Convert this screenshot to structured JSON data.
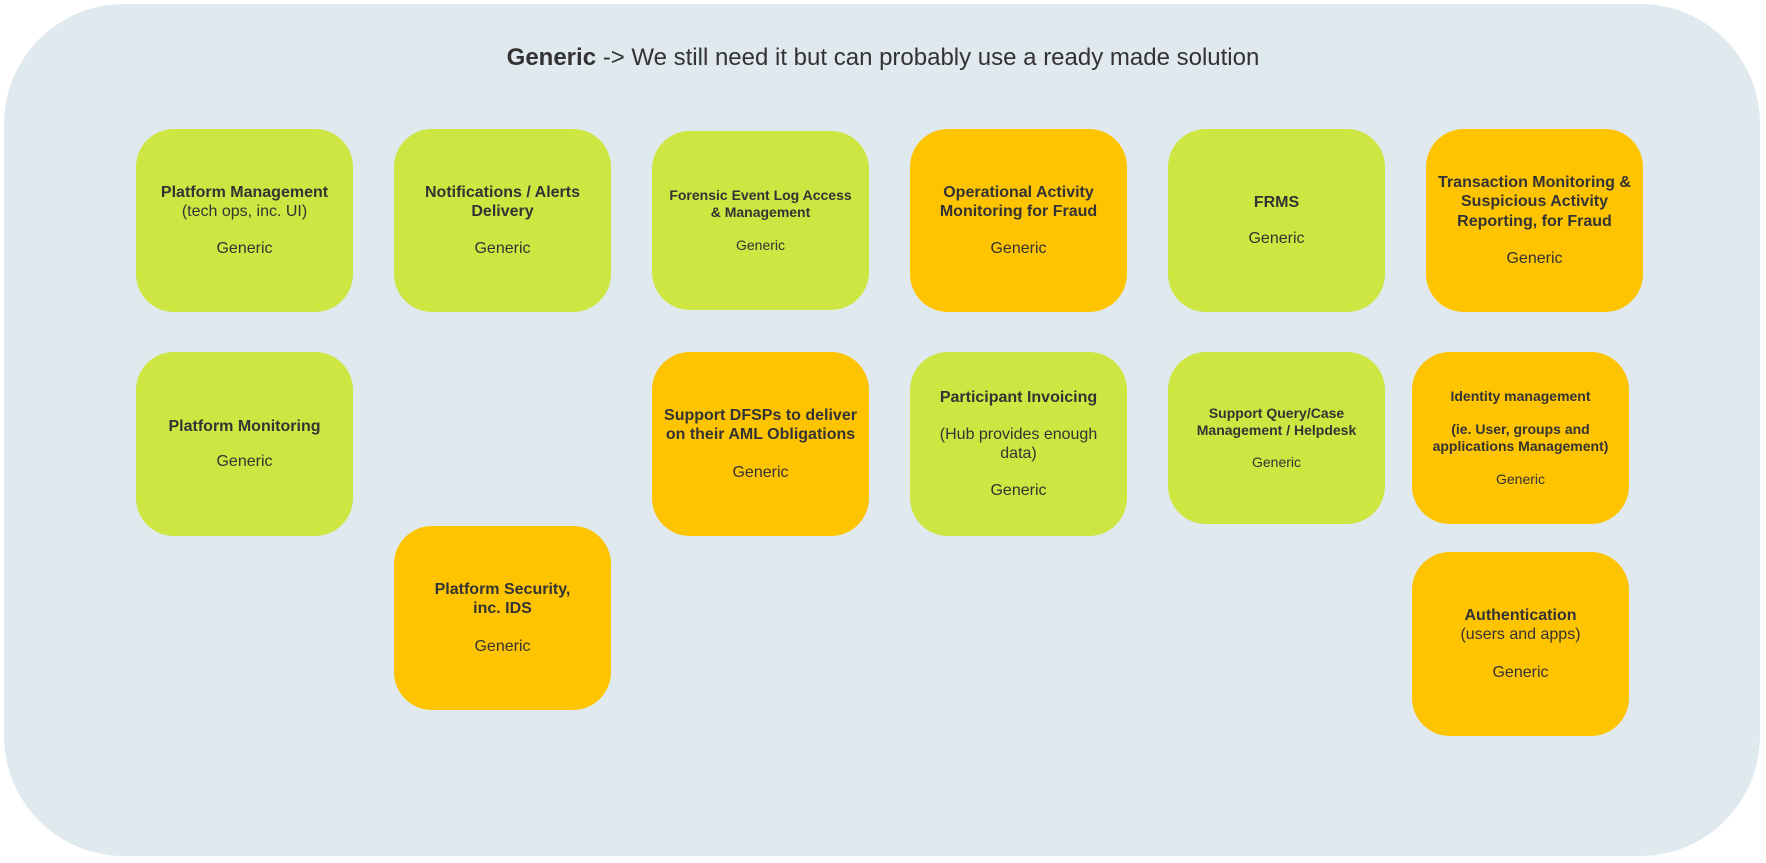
{
  "header": {
    "title_bold": "Generic",
    "title_rest": " -> We still need it but can probably use a ready made solution"
  },
  "colors": {
    "green": "#cde642",
    "orange": "#ffc400",
    "background": "#dfe9ee"
  },
  "boxes": {
    "platform_management": {
      "title": "Platform Management",
      "subtitle": "(tech ops, inc. UI)",
      "tag": "Generic",
      "color": "green"
    },
    "notifications": {
      "title_line1": "Notifications / Alerts",
      "title_line2": "Delivery",
      "tag": "Generic",
      "color": "green"
    },
    "forensic": {
      "title_line1": "Forensic Event Log Access",
      "title_line2": "& Management",
      "tag": "Generic",
      "color": "green"
    },
    "operational": {
      "title_line1": "Operational Activity",
      "title_line2": "Monitoring for Fraud",
      "tag": "Generic",
      "color": "orange"
    },
    "frms": {
      "title": "FRMS",
      "tag": "Generic",
      "color": "green"
    },
    "transaction_monitoring": {
      "title_line1": "Transaction Monitoring &",
      "title_line2": "Suspicious Activity",
      "title_line3": "Reporting, for Fraud",
      "tag": "Generic",
      "color": "orange"
    },
    "platform_monitoring": {
      "title": "Platform Monitoring",
      "tag": "Generic",
      "color": "green"
    },
    "support_dfsps": {
      "title_line1": "Support DFSPs to deliver",
      "title_line2": "on their AML Obligations",
      "tag": "Generic",
      "color": "orange"
    },
    "participant_invoicing": {
      "title": "Participant Invoicing",
      "subtitle_line1": "(Hub provides enough",
      "subtitle_line2": "data)",
      "tag": "Generic",
      "color": "green"
    },
    "support_query": {
      "title_line1": "Support Query/Case",
      "title_line2": "Management / Helpdesk",
      "tag": "Generic",
      "color": "green"
    },
    "identity_management": {
      "title": "Identity management",
      "subtitle_line1": "(ie. User, groups and",
      "subtitle_line2": "applications Management)",
      "tag": "Generic",
      "color": "orange"
    },
    "platform_security": {
      "title_line1": "Platform Security,",
      "title_line2": "inc. IDS",
      "tag": "Generic",
      "color": "orange"
    },
    "authentication": {
      "title": "Authentication",
      "subtitle": "(users and apps)",
      "tag": "Generic",
      "color": "orange"
    }
  }
}
